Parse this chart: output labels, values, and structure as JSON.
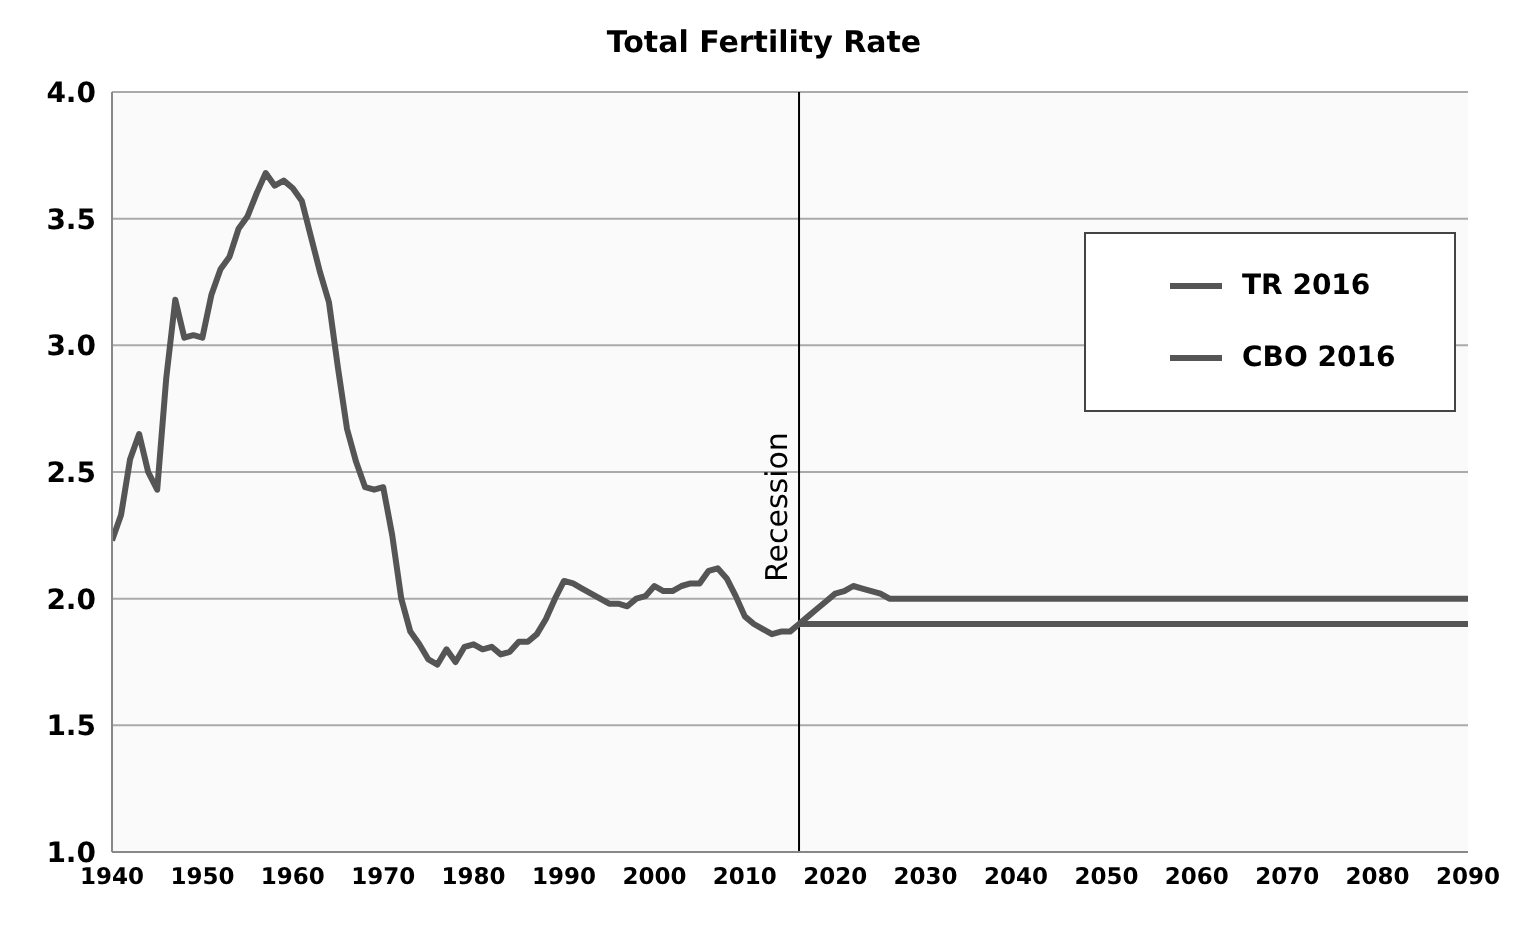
{
  "chart_data": {
    "type": "line",
    "title": "Total Fertility Rate",
    "series": [
      {
        "name": "TR 2016",
        "color": "#555555",
        "x": [
          1940,
          1941,
          1942,
          1943,
          1944,
          1945,
          1946,
          1947,
          1948,
          1949,
          1950,
          1951,
          1952,
          1953,
          1954,
          1955,
          1956,
          1957,
          1958,
          1959,
          1960,
          1961,
          1962,
          1963,
          1964,
          1965,
          1966,
          1967,
          1968,
          1969,
          1970,
          1971,
          1972,
          1973,
          1974,
          1975,
          1976,
          1977,
          1978,
          1979,
          1980,
          1981,
          1982,
          1983,
          1984,
          1985,
          1986,
          1987,
          1988,
          1989,
          1990,
          1991,
          1992,
          1993,
          1994,
          1995,
          1996,
          1997,
          1998,
          1999,
          2000,
          2001,
          2002,
          2003,
          2004,
          2005,
          2006,
          2007,
          2008,
          2009,
          2010,
          2011,
          2012,
          2013,
          2014,
          2015,
          2016,
          2017,
          2018,
          2019,
          2020,
          2021,
          2022,
          2023,
          2024,
          2025,
          2026,
          2090
        ],
        "values": [
          2.23,
          2.33,
          2.55,
          2.65,
          2.5,
          2.43,
          2.87,
          3.18,
          3.03,
          3.04,
          3.03,
          3.2,
          3.3,
          3.35,
          3.46,
          3.51,
          3.6,
          3.68,
          3.63,
          3.65,
          3.62,
          3.57,
          3.43,
          3.29,
          3.17,
          2.91,
          2.67,
          2.54,
          2.44,
          2.43,
          2.44,
          2.25,
          2.0,
          1.87,
          1.82,
          1.76,
          1.74,
          1.8,
          1.75,
          1.81,
          1.82,
          1.8,
          1.81,
          1.78,
          1.79,
          1.83,
          1.83,
          1.86,
          1.92,
          2.0,
          2.07,
          2.06,
          2.04,
          2.02,
          2.0,
          1.98,
          1.98,
          1.97,
          2.0,
          2.01,
          2.05,
          2.03,
          2.03,
          2.05,
          2.06,
          2.06,
          2.11,
          2.12,
          2.08,
          2.01,
          1.93,
          1.9,
          1.88,
          1.86,
          1.87,
          1.87,
          1.9,
          1.93,
          1.96,
          1.99,
          2.02,
          2.03,
          2.05,
          2.04,
          2.03,
          2.02,
          2.0,
          2.0
        ]
      },
      {
        "name": "CBO 2016",
        "color": "#555555",
        "x": [
          2016,
          2090
        ],
        "values": [
          1.9,
          1.9
        ]
      }
    ],
    "xlim": [
      1940,
      2090
    ],
    "xticks": [
      1940,
      1950,
      1960,
      1970,
      1980,
      1990,
      2000,
      2010,
      2020,
      2030,
      2040,
      2050,
      2060,
      2070,
      2080,
      2090
    ],
    "ylim": [
      1.0,
      4.0
    ],
    "yticks": [
      {
        "value": 1,
        "label": "1.0"
      },
      {
        "value": 1.5,
        "label": "1.5"
      },
      {
        "value": 2,
        "label": "2.0"
      },
      {
        "value": 2.5,
        "label": "2.5"
      },
      {
        "value": 3,
        "label": "3.0"
      },
      {
        "value": 3.5,
        "label": "3.5"
      },
      {
        "value": 4,
        "label": "4.0"
      }
    ],
    "ref_lines": [
      {
        "axis": "x",
        "value": 2016,
        "label": "Recession",
        "color": "#000000"
      }
    ],
    "grid": "y",
    "legend": "top right",
    "marker": "none",
    "line_style": "solid"
  }
}
